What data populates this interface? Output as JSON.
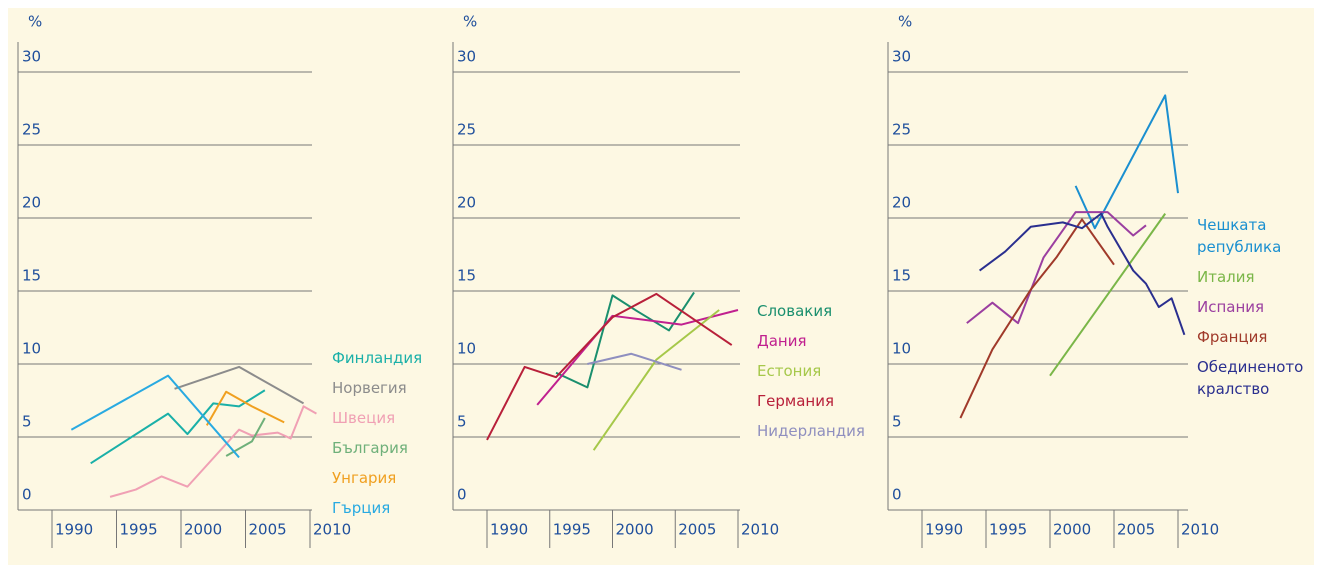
{
  "chart_data": [
    {
      "type": "line",
      "ylabel": "%",
      "ylim": [
        0,
        30
      ],
      "yticks": [
        0,
        5,
        10,
        15,
        20,
        25,
        30
      ],
      "xlim": [
        1990,
        2010
      ],
      "xticks": [
        1990,
        1995,
        2000,
        2005,
        2010
      ],
      "series": [
        {
          "name": "Финландия",
          "color": "#1ab0a8",
          "x": [
            1993,
            1999,
            2000.5,
            2002.5,
            2004.5,
            2006.5
          ],
          "values": [
            3.2,
            6.6,
            5.2,
            7.3,
            7.1,
            8.2
          ]
        },
        {
          "name": "Норвегия",
          "color": "#8c8c8c",
          "x": [
            1999.5,
            2004.5,
            2009.5
          ],
          "values": [
            8.3,
            9.8,
            7.3
          ]
        },
        {
          "name": "Швеция",
          "color": "#f0a0b4",
          "x": [
            1994.5,
            1996.5,
            1998.5,
            2000.5,
            2004.5,
            2005.5,
            2007.5,
            2008.5,
            2009.5,
            2010.5
          ],
          "values": [
            0.9,
            1.4,
            2.3,
            1.6,
            5.5,
            5.1,
            5.3,
            4.9,
            7.1,
            6.6
          ]
        },
        {
          "name": "България",
          "color": "#6fb07a",
          "x": [
            2003.5,
            2005.5,
            2006.5
          ],
          "values": [
            3.7,
            4.7,
            6.3
          ]
        },
        {
          "name": "Унгария",
          "color": "#f0a020",
          "x": [
            2002,
            2003.5,
            2005.5,
            2008
          ],
          "values": [
            5.8,
            8.1,
            7.1,
            6.0
          ]
        },
        {
          "name": "Гърция",
          "color": "#29aae1",
          "x": [
            1991.5,
            1999,
            2004.5
          ],
          "values": [
            5.5,
            9.2,
            3.6
          ]
        }
      ]
    },
    {
      "type": "line",
      "ylabel": "%",
      "ylim": [
        0,
        30
      ],
      "yticks": [
        0,
        5,
        10,
        15,
        20,
        25,
        30
      ],
      "xlim": [
        1990,
        2010
      ],
      "xticks": [
        1990,
        1995,
        2000,
        2005,
        2010
      ],
      "series": [
        {
          "name": "Словакия",
          "color": "#1a8f6e",
          "x": [
            1995.5,
            1998,
            2000,
            2002,
            2004.5,
            2006.5
          ],
          "values": [
            9.4,
            8.4,
            14.7,
            13.6,
            12.3,
            14.9
          ]
        },
        {
          "name": "Дания",
          "color": "#c0208f",
          "x": [
            1994,
            2000,
            2005.5,
            2010
          ],
          "values": [
            7.2,
            13.3,
            12.7,
            13.7
          ]
        },
        {
          "name": "Естония",
          "color": "#a6c84a",
          "x": [
            1998.5,
            2003.5,
            2008.5
          ],
          "values": [
            4.1,
            10.3,
            13.7
          ]
        },
        {
          "name": "Германия",
          "color": "#b8203a",
          "x": [
            1990,
            1993,
            1995.5,
            2000,
            2003.5,
            2009.5
          ],
          "values": [
            4.8,
            9.8,
            9.1,
            13.2,
            14.8,
            11.3
          ]
        },
        {
          "name": "Нидерландия",
          "color": "#8f8fbf",
          "x": [
            1998,
            2001.5,
            2005.5
          ],
          "values": [
            10.0,
            10.7,
            9.6
          ]
        }
      ]
    },
    {
      "type": "line",
      "ylabel": "%",
      "ylim": [
        0,
        30
      ],
      "yticks": [
        0,
        5,
        10,
        15,
        20,
        25,
        30
      ],
      "xlim": [
        1990,
        2010
      ],
      "xticks": [
        1990,
        1995,
        2000,
        2005,
        2010
      ],
      "series": [
        {
          "name": "Чешката република",
          "color": "#1a8fd0",
          "x": [
            2002,
            2003.5,
            2009,
            2010
          ],
          "values": [
            22.2,
            19.3,
            28.4,
            21.7
          ]
        },
        {
          "name": "Италия",
          "color": "#7ab648",
          "x": [
            2000,
            2009
          ],
          "values": [
            9.2,
            20.3
          ]
        },
        {
          "name": "Испания",
          "color": "#9b3fa0",
          "x": [
            1993.5,
            1995.5,
            1997.5,
            1999.5,
            2002,
            2004.5,
            2006.5,
            2007.5
          ],
          "values": [
            12.8,
            14.2,
            12.8,
            17.3,
            20.4,
            20.4,
            18.8,
            19.5
          ]
        },
        {
          "name": "Франция",
          "color": "#a03a2a",
          "x": [
            1993,
            1995.5,
            1998.5,
            2000.5,
            2002.5,
            2005
          ],
          "values": [
            6.3,
            11.0,
            15.1,
            17.3,
            19.9,
            16.8
          ]
        },
        {
          "name": "Обединеното кралство",
          "color": "#2a2f8f",
          "x": [
            1994.5,
            1996.5,
            1998.5,
            2001,
            2002.5,
            2004,
            2004.5,
            2006.5,
            2007.5,
            2008.5,
            2009.5,
            2010.5
          ],
          "values": [
            16.4,
            17.7,
            19.4,
            19.7,
            19.3,
            20.3,
            19.4,
            16.4,
            15.5,
            13.9,
            14.5,
            12.0
          ]
        }
      ]
    }
  ]
}
